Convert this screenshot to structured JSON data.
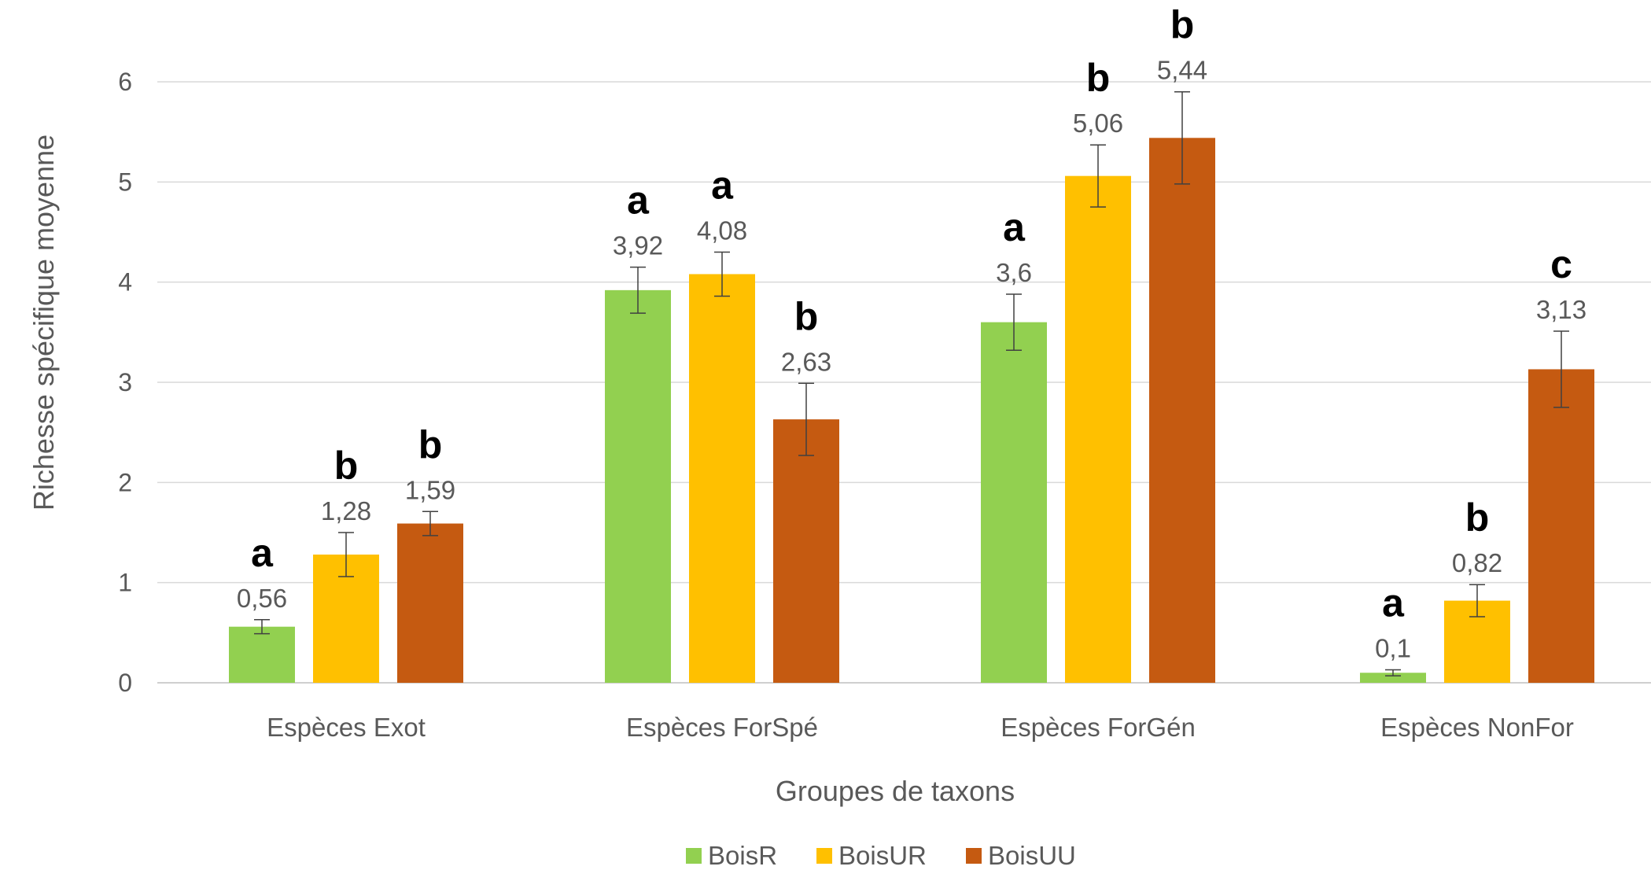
{
  "chart_data": {
    "type": "bar",
    "xlabel": "Groupes de taxons",
    "ylabel": "Richesse spécifique moyenne",
    "ylim": [
      0,
      6
    ],
    "yticks": [
      "0",
      "1",
      "2",
      "3",
      "4",
      "5",
      "6"
    ],
    "grid": true,
    "legend_position": "bottom",
    "categories": [
      "Espèces Exot",
      "Espèces ForSpé",
      "Espèces ForGén",
      "Espèces NonFor"
    ],
    "series": [
      {
        "name": "BoisR",
        "color": "#92d050",
        "values": [
          0.56,
          3.92,
          3.6,
          0.1
        ],
        "labels": [
          "0,56",
          "3,92",
          "3,6",
          "0,1"
        ],
        "error": [
          0.07,
          0.23,
          0.28,
          0.03
        ],
        "letters": [
          "a",
          "a",
          "a",
          "a"
        ]
      },
      {
        "name": "BoisUR",
        "color": "#ffc000",
        "values": [
          1.28,
          4.08,
          5.06,
          0.82
        ],
        "labels": [
          "1,28",
          "4,08",
          "5,06",
          "0,82"
        ],
        "error": [
          0.22,
          0.22,
          0.31,
          0.16
        ],
        "letters": [
          "b",
          "a",
          "b",
          "b"
        ]
      },
      {
        "name": "BoisUU",
        "color": "#c55a11",
        "values": [
          1.59,
          2.63,
          5.44,
          3.13
        ],
        "labels": [
          "1,59",
          "2,63",
          "5,44",
          "3,13"
        ],
        "error": [
          0.12,
          0.36,
          0.46,
          0.38
        ],
        "letters": [
          "b",
          "b",
          "b",
          "c"
        ]
      }
    ]
  }
}
